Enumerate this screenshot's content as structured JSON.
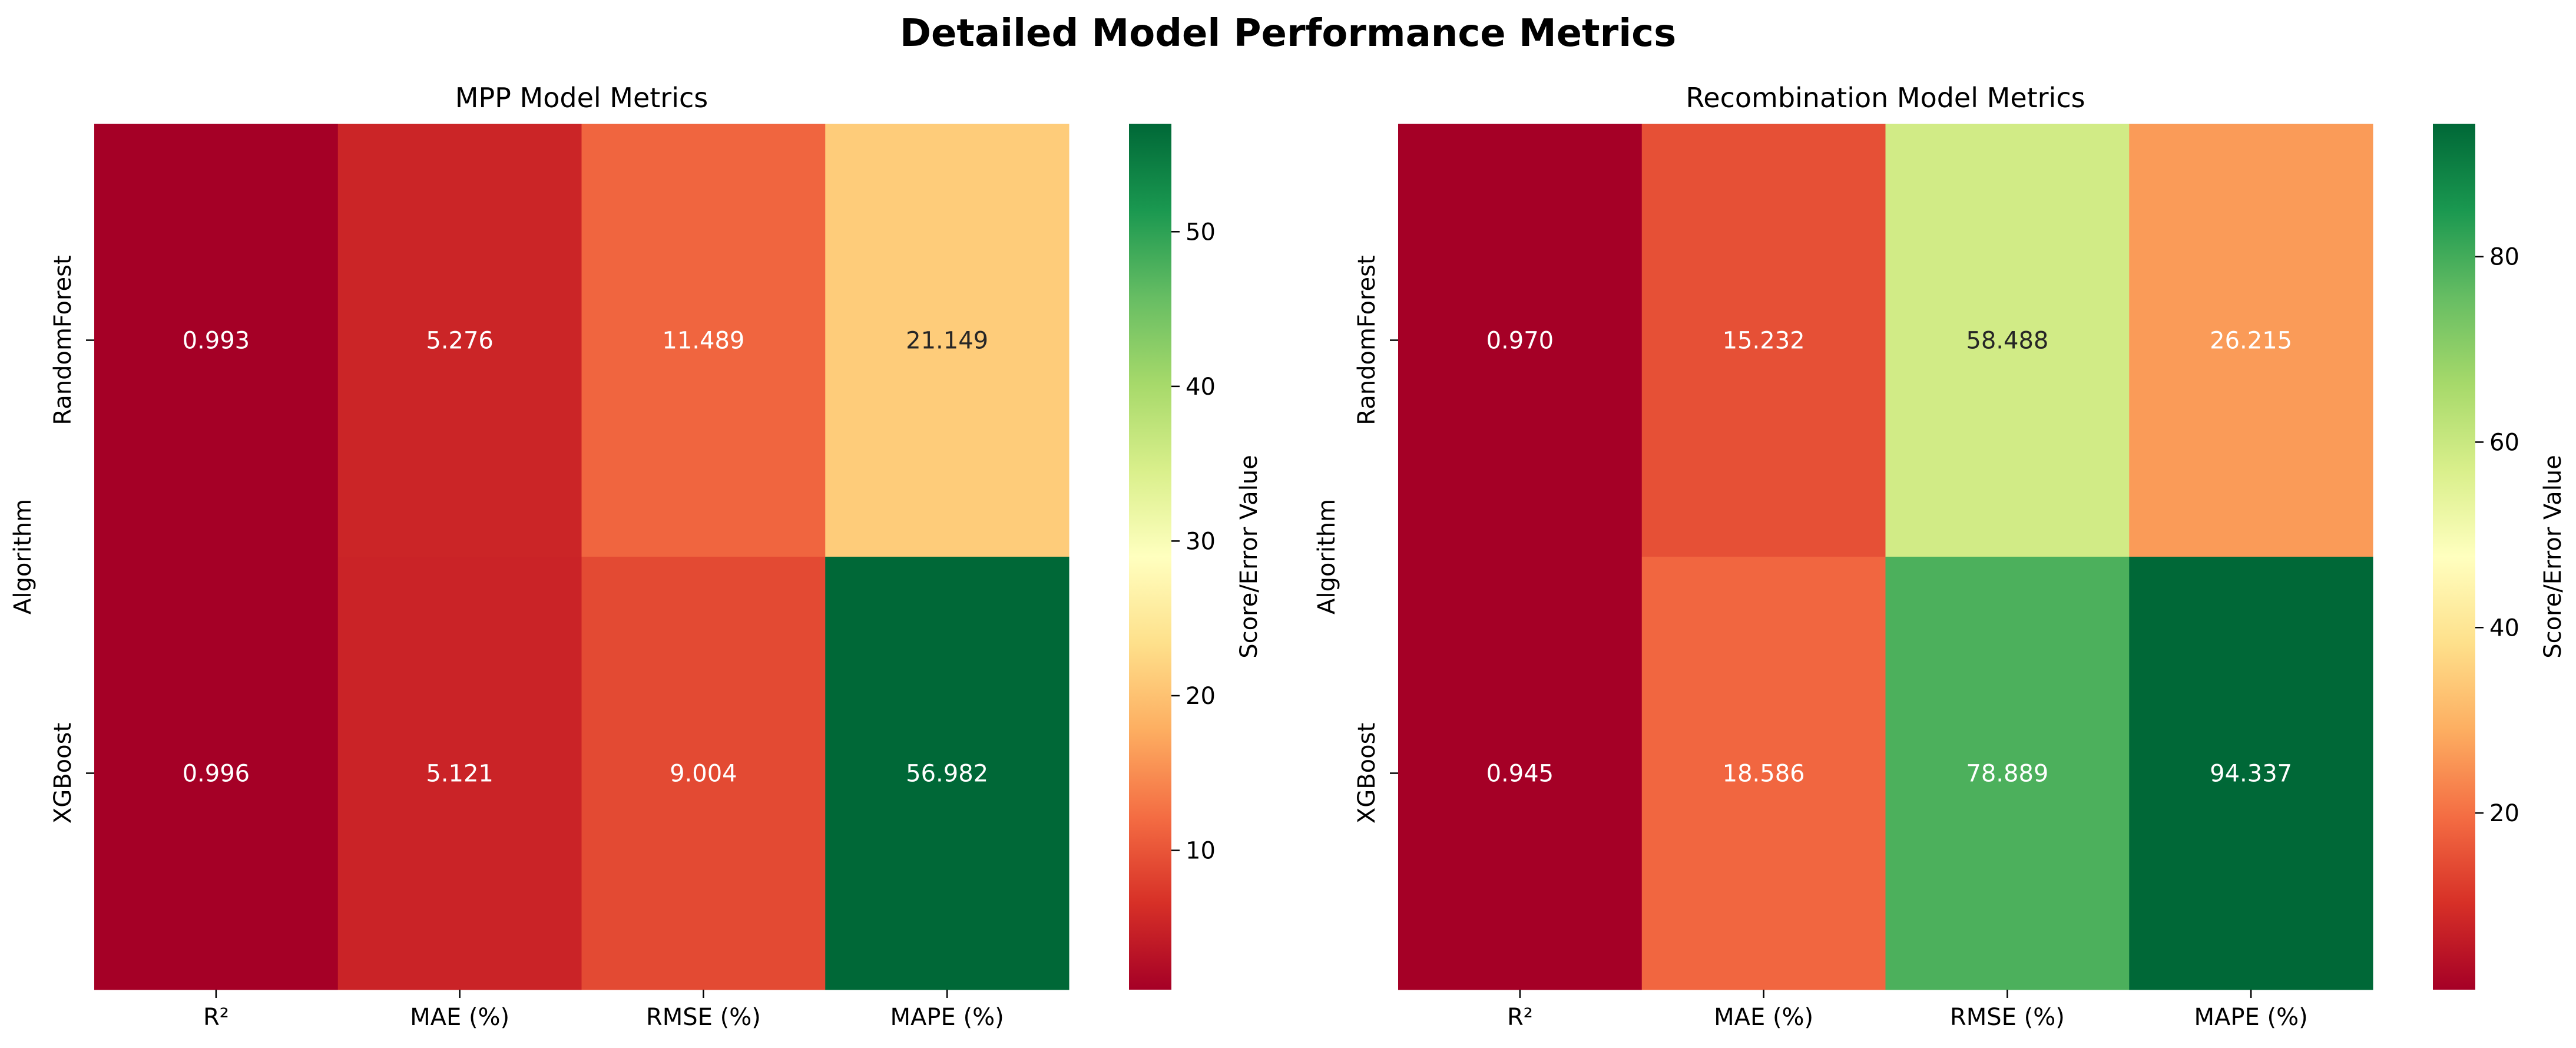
{
  "figure": {
    "title": "Detailed Model Performance Metrics"
  },
  "chart_data": [
    {
      "type": "heatmap",
      "title": "MPP Model Metrics",
      "xlabel": "",
      "ylabel": "Algorithm",
      "columns": [
        "R²",
        "MAE (%)",
        "RMSE (%)",
        "MAPE (%)"
      ],
      "rows": [
        "RandomForest",
        "XGBoost"
      ],
      "values": [
        [
          0.993,
          5.276,
          11.489,
          21.149
        ],
        [
          0.996,
          5.121,
          9.004,
          56.982
        ]
      ],
      "colorbar": {
        "label": "Score/Error Value",
        "vmin": 0.993,
        "vmax": 56.982,
        "ticks": [
          10,
          20,
          30,
          40,
          50
        ],
        "colormap": "RdYlGn"
      }
    },
    {
      "type": "heatmap",
      "title": "Recombination Model Metrics",
      "xlabel": "",
      "ylabel": "Algorithm",
      "columns": [
        "R²",
        "MAE (%)",
        "RMSE (%)",
        "MAPE (%)"
      ],
      "rows": [
        "RandomForest",
        "XGBoost"
      ],
      "values": [
        [
          0.97,
          15.232,
          58.488,
          26.215
        ],
        [
          0.945,
          18.586,
          78.889,
          94.337
        ]
      ],
      "colorbar": {
        "label": "Score/Error Value",
        "vmin": 0.945,
        "vmax": 94.337,
        "ticks": [
          20,
          40,
          60,
          80
        ],
        "colormap": "RdYlGn"
      }
    }
  ]
}
